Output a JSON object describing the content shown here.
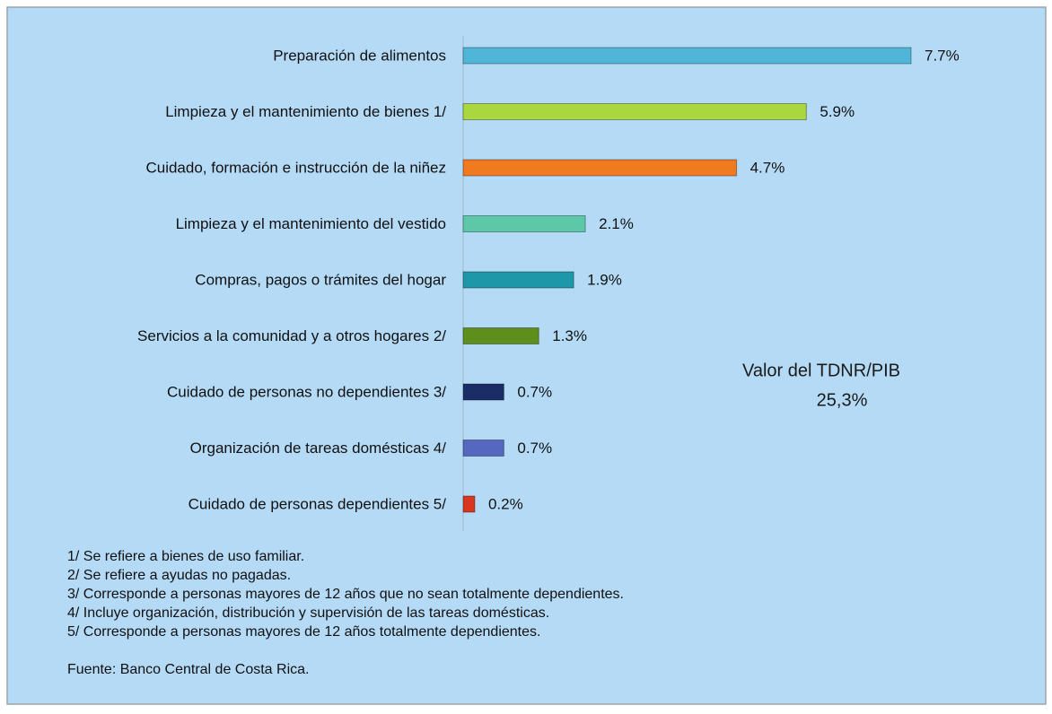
{
  "chart_data": {
    "type": "bar",
    "orientation": "horizontal",
    "categories": [
      "Preparación de alimentos",
      "Limpieza y el mantenimiento de bienes 1/",
      "Cuidado, formación e instrucción de la niñez",
      "Limpieza y el mantenimiento del vestido",
      "Compras, pagos o trámites del hogar",
      "Servicios a la comunidad y a otros hogares 2/",
      "Cuidado de personas no dependientes 3/",
      "Organización de tareas domésticas 4/",
      "Cuidado de personas dependientes 5/"
    ],
    "values": [
      7.7,
      5.9,
      4.7,
      2.1,
      1.9,
      1.3,
      0.7,
      0.7,
      0.2
    ],
    "value_labels": [
      "7.7%",
      "5.9%",
      "4.7%",
      "2.1%",
      "1.9%",
      "1.3%",
      "0.7%",
      "0.7%",
      "0.2%"
    ],
    "colors": [
      "#4fb6d8",
      "#aad63e",
      "#ef7a20",
      "#5cc8a8",
      "#1e98a8",
      "#5e8e1c",
      "#1a2d66",
      "#5468c0",
      "#d8361e"
    ],
    "annotation": [
      "Valor del TDNR/PIB",
      "25,3%"
    ],
    "notes": [
      "1/ Se refiere a bienes de uso familiar.",
      "2/ Se refiere a ayudas no pagadas.",
      "3/ Corresponde a personas mayores de 12 años que no sean totalmente dependientes.",
      "4/ Incluye  organización, distribución y supervisión de las tareas domésticas.",
      "5/ Corresponde a personas mayores de 12 años totalmente dependientes."
    ],
    "source": "Fuente:  Banco Central de Costa Rica."
  }
}
